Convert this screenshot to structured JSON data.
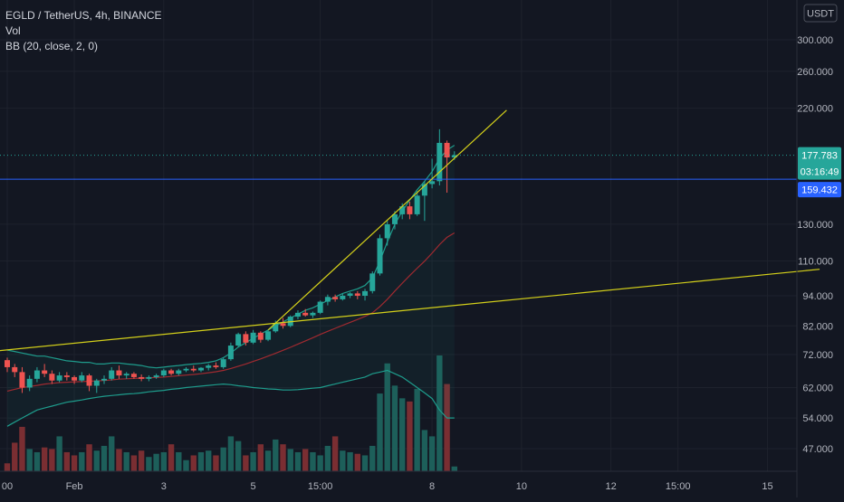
{
  "legend": {
    "symbol_line": "EGLD / TetherUS, 4h, BINANCE",
    "volume_label": "Vol",
    "indicator_label": "BB (20, close, 2, 0)"
  },
  "currency_badge": "USDT",
  "colors": {
    "background": "#131722",
    "up": "#26a69a",
    "down": "#ef5350",
    "trendline": "#d4d01a",
    "bb_band": "#1e9c8c",
    "bb_basis": "#a02a30",
    "price_line": "#2962ff",
    "last_price_tag": "#26a69a",
    "price_tag_blue": "#2962ff"
  },
  "price_tags": {
    "last_price": "177.783",
    "countdown": "03:16:49",
    "line_price": "159.432"
  },
  "chart_data": {
    "type": "candlestick",
    "y_scale": "log",
    "ylim": [
      42,
      330
    ],
    "y_ticks": [
      "300.000",
      "260.000",
      "220.000",
      "130.000",
      "110.000",
      "94.000",
      "82.000",
      "72.000",
      "62.000",
      "54.000",
      "47.000"
    ],
    "y_tick_values": [
      300,
      260,
      220,
      130,
      110,
      94,
      82,
      72,
      62,
      54,
      47
    ],
    "x_ticks": [
      {
        "label": "00",
        "index": 0
      },
      {
        "label": "Feb",
        "index": 9
      },
      {
        "label": "3",
        "index": 21
      },
      {
        "label": "5",
        "index": 33
      },
      {
        "label": "15:00",
        "index": 42
      },
      {
        "label": "8",
        "index": 57
      },
      {
        "label": "10",
        "index": 69
      },
      {
        "label": "12",
        "index": 81
      },
      {
        "label": "15:00",
        "index": 90
      },
      {
        "label": "15",
        "index": 102
      }
    ],
    "candles": [
      [
        70.2,
        71.0,
        66.5,
        68.0
      ],
      [
        68.0,
        69.0,
        65.0,
        66.5
      ],
      [
        66.5,
        68.0,
        60.5,
        62.0
      ],
      [
        62.0,
        65.5,
        61.0,
        64.5
      ],
      [
        64.5,
        68.0,
        63.5,
        67.0
      ],
      [
        67.0,
        69.0,
        65.0,
        66.0
      ],
      [
        66.0,
        67.0,
        63.0,
        64.0
      ],
      [
        64.0,
        66.5,
        63.5,
        65.5
      ],
      [
        65.5,
        66.5,
        64.0,
        65.0
      ],
      [
        65.0,
        65.5,
        63.0,
        64.0
      ],
      [
        64.0,
        66.5,
        63.5,
        65.5
      ],
      [
        65.5,
        66.0,
        61.0,
        62.5
      ],
      [
        62.5,
        64.5,
        60.5,
        64.0
      ],
      [
        64.0,
        65.5,
        63.0,
        64.5
      ],
      [
        64.5,
        68.0,
        64.0,
        67.0
      ],
      [
        67.0,
        68.5,
        64.5,
        65.5
      ],
      [
        65.5,
        66.5,
        64.5,
        66.0
      ],
      [
        66.0,
        66.5,
        64.5,
        65.0
      ],
      [
        65.0,
        65.8,
        63.8,
        64.5
      ],
      [
        64.5,
        65.5,
        63.8,
        65.0
      ],
      [
        65.0,
        66.0,
        64.5,
        65.5
      ],
      [
        65.5,
        67.5,
        65.0,
        67.0
      ],
      [
        67.0,
        67.5,
        65.5,
        66.0
      ],
      [
        66.0,
        67.5,
        65.5,
        67.0
      ],
      [
        67.0,
        68.0,
        66.5,
        67.5
      ],
      [
        67.5,
        68.5,
        66.5,
        67.0
      ],
      [
        67.0,
        68.0,
        66.5,
        67.8
      ],
      [
        67.8,
        69.0,
        67.0,
        68.5
      ],
      [
        68.5,
        69.5,
        67.5,
        68.0
      ],
      [
        68.0,
        71.0,
        67.5,
        70.5
      ],
      [
        70.5,
        76.0,
        70.0,
        75.0
      ],
      [
        75.0,
        79.5,
        74.5,
        79.0
      ],
      [
        79.0,
        80.0,
        75.0,
        76.0
      ],
      [
        76.0,
        80.5,
        75.5,
        79.5
      ],
      [
        79.5,
        80.0,
        76.0,
        77.0
      ],
      [
        77.0,
        80.5,
        76.5,
        80.0
      ],
      [
        80.0,
        84.0,
        79.5,
        83.0
      ],
      [
        83.0,
        85.0,
        81.0,
        82.0
      ],
      [
        82.0,
        86.0,
        81.5,
        85.5
      ],
      [
        85.5,
        88.0,
        84.5,
        87.0
      ],
      [
        87.0,
        88.5,
        85.5,
        86.0
      ],
      [
        86.0,
        87.5,
        85.0,
        87.0
      ],
      [
        87.0,
        92.0,
        86.5,
        91.5
      ],
      [
        91.5,
        94.5,
        90.0,
        93.5
      ],
      [
        93.5,
        94.5,
        91.5,
        92.5
      ],
      [
        92.5,
        95.0,
        92.0,
        94.0
      ],
      [
        94.0,
        95.5,
        93.0,
        95.0
      ],
      [
        95.0,
        96.0,
        92.5,
        94.0
      ],
      [
        94.0,
        97.0,
        92.0,
        96.0
      ],
      [
        96.0,
        105.0,
        95.0,
        104.0
      ],
      [
        104.0,
        124.0,
        103.0,
        122.0
      ],
      [
        122.0,
        132.0,
        118.0,
        130.0
      ],
      [
        130.0,
        138.0,
        127.0,
        136.0
      ],
      [
        136.0,
        143.0,
        133.0,
        141.0
      ],
      [
        141.0,
        144.0,
        133.0,
        136.0
      ],
      [
        136.0,
        151.0,
        135.0,
        148.0
      ],
      [
        148.0,
        158.0,
        132.0,
        156.0
      ],
      [
        156.0,
        175.0,
        153.0,
        158.0
      ],
      [
        158.0,
        200.0,
        155.0,
        188.0
      ],
      [
        188.0,
        190.0,
        150.0,
        176.0
      ],
      [
        176.0,
        181.0,
        174.0,
        177.783
      ]
    ],
    "volumes": [
      5,
      18,
      28,
      14,
      12,
      15,
      14,
      22,
      12,
      10,
      12,
      17,
      13,
      16,
      22,
      14,
      12,
      10,
      13,
      9,
      11,
      12,
      17,
      12,
      7,
      10,
      12,
      13,
      10,
      15,
      22,
      19,
      10,
      12,
      17,
      13,
      20,
      17,
      14,
      12,
      14,
      12,
      10,
      16,
      22,
      13,
      12,
      11,
      10,
      16,
      49,
      68,
      54,
      46,
      44,
      52,
      26,
      22,
      73,
      55,
      3
    ],
    "volume_colors": "up-volume teal / down-volume red, same as candle direction",
    "bb_upper": [
      73.5,
      73.0,
      72.5,
      72.0,
      71.5,
      71.5,
      71.0,
      70.5,
      70.0,
      69.8,
      69.5,
      69.5,
      69.0,
      69.0,
      69.3,
      69.3,
      69.0,
      68.8,
      68.5,
      68.0,
      67.8,
      68.0,
      68.3,
      68.5,
      68.8,
      69.0,
      69.2,
      69.5,
      70.0,
      71.0,
      72.5,
      74.5,
      76.0,
      77.5,
      79.0,
      80.5,
      82.0,
      83.5,
      85.0,
      86.5,
      88.0,
      89.0,
      90.5,
      92.0,
      93.5,
      95.0,
      96.0,
      97.0,
      98.5,
      102.0,
      110.0,
      120.0,
      130.0,
      138.0,
      145.0,
      152.0,
      158.0,
      165.0,
      175.0,
      182.0,
      186.0
    ],
    "bb_basis": [
      61.0,
      61.5,
      62.0,
      62.3,
      62.6,
      63.0,
      63.2,
      63.4,
      63.5,
      63.6,
      63.7,
      63.8,
      63.9,
      64.0,
      64.2,
      64.4,
      64.5,
      64.6,
      64.7,
      64.8,
      64.9,
      65.0,
      65.2,
      65.4,
      65.6,
      65.8,
      66.0,
      66.3,
      66.6,
      67.0,
      67.6,
      68.3,
      69.0,
      69.8,
      70.6,
      71.5,
      72.4,
      73.4,
      74.4,
      75.5,
      76.6,
      77.7,
      78.9,
      80.0,
      81.1,
      82.2,
      83.3,
      84.4,
      85.6,
      87.0,
      89.5,
      92.5,
      96.0,
      99.5,
      103.0,
      106.5,
      110.0,
      114.0,
      118.5,
      122.5,
      125.0
    ],
    "bb_lower": [
      52.0,
      53.0,
      54.0,
      55.0,
      56.0,
      56.5,
      57.0,
      57.5,
      58.0,
      58.3,
      58.6,
      59.0,
      59.3,
      59.6,
      59.8,
      60.0,
      60.2,
      60.3,
      60.5,
      60.8,
      61.0,
      61.2,
      61.5,
      61.7,
      62.0,
      62.2,
      62.4,
      62.6,
      62.8,
      63.0,
      62.8,
      62.5,
      62.3,
      62.0,
      61.8,
      61.6,
      61.5,
      61.3,
      61.3,
      61.4,
      61.6,
      61.8,
      62.0,
      62.5,
      63.0,
      63.5,
      64.0,
      64.5,
      65.0,
      66.0,
      66.5,
      67.0,
      66.0,
      65.0,
      63.5,
      62.0,
      60.5,
      59.0,
      56.0,
      54.0,
      54.0
    ],
    "trendlines": [
      {
        "from": {
          "index": -1,
          "price": 73.3
        },
        "to": {
          "index": 109,
          "price": 106.0
        }
      },
      {
        "from": {
          "index": 35,
          "price": 80.5
        },
        "to": {
          "index": 67,
          "price": 218.0
        }
      }
    ],
    "horizontal_line_price": 159.432,
    "last_price": 177.783
  }
}
